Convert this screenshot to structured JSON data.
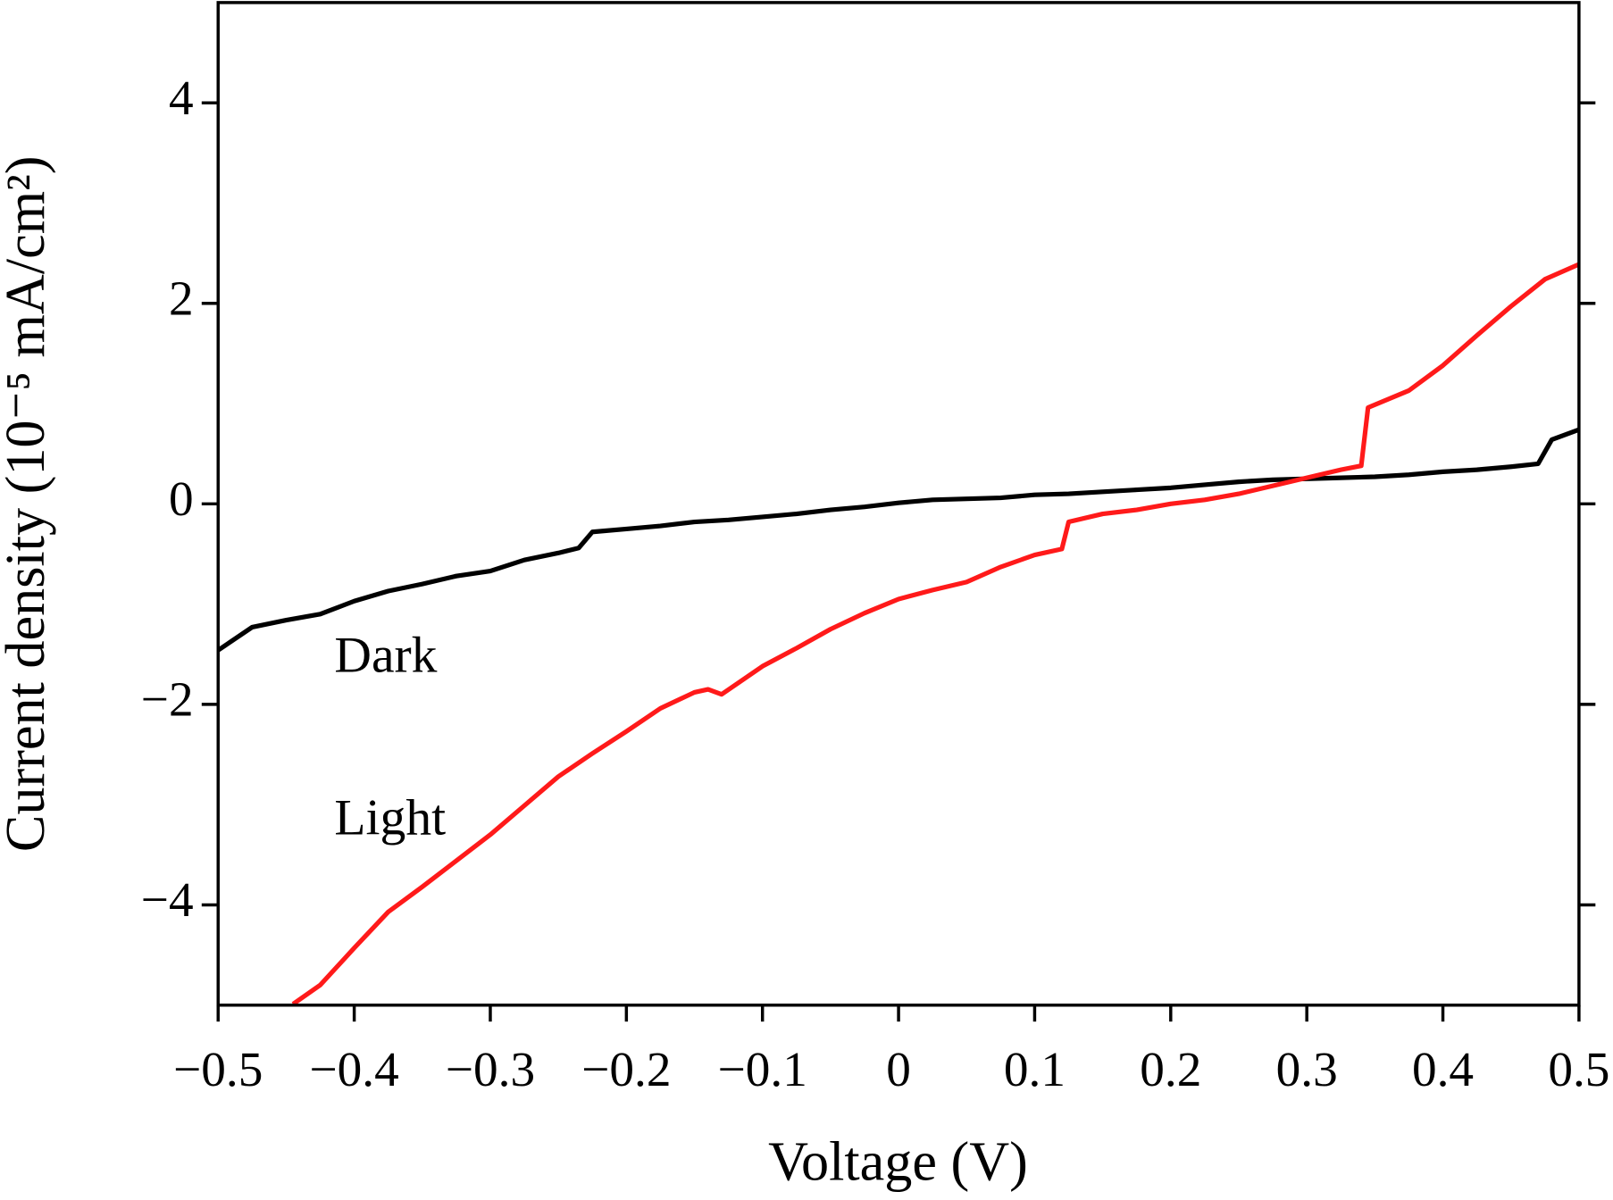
{
  "chart_data": {
    "type": "line",
    "x_label": "Voltage (V)",
    "y_label": "Current density (10⁻⁵ mA/cm²)",
    "xlim": [
      -0.5,
      0.5
    ],
    "ylim": [
      -5,
      5
    ],
    "xticks": [
      {
        "value": -0.5,
        "label": "−0.5"
      },
      {
        "value": -0.4,
        "label": "−0.4"
      },
      {
        "value": -0.3,
        "label": "−0.3"
      },
      {
        "value": -0.2,
        "label": "−0.2"
      },
      {
        "value": -0.1,
        "label": "−0.1"
      },
      0,
      0.1,
      0.2,
      0.3,
      0.4,
      0.5
    ],
    "yticks": [
      {
        "value": -4,
        "label": "−4"
      },
      {
        "value": -2,
        "label": "−2"
      },
      0,
      2,
      4
    ],
    "series": [
      {
        "name": "Dark",
        "color": "#000000",
        "x": [
          -0.5,
          -0.475,
          -0.45,
          -0.425,
          -0.4,
          -0.375,
          -0.35,
          -0.325,
          -0.3,
          -0.275,
          -0.25,
          -0.235,
          -0.225,
          -0.2,
          -0.175,
          -0.15,
          -0.125,
          -0.1,
          -0.075,
          -0.05,
          -0.025,
          0,
          0.025,
          0.05,
          0.075,
          0.1,
          0.125,
          0.15,
          0.175,
          0.2,
          0.225,
          0.25,
          0.275,
          0.3,
          0.325,
          0.35,
          0.375,
          0.4,
          0.425,
          0.45,
          0.47,
          0.48,
          0.5
        ],
        "values": [
          -1.46,
          -1.23,
          -1.16,
          -1.1,
          -0.97,
          -0.87,
          -0.8,
          -0.72,
          -0.67,
          -0.56,
          -0.49,
          -0.44,
          -0.28,
          -0.25,
          -0.22,
          -0.18,
          -0.16,
          -0.13,
          -0.1,
          -0.06,
          -0.03,
          0.01,
          0.04,
          0.05,
          0.06,
          0.09,
          0.1,
          0.12,
          0.14,
          0.16,
          0.19,
          0.22,
          0.24,
          0.25,
          0.26,
          0.27,
          0.29,
          0.32,
          0.34,
          0.37,
          0.4,
          0.64,
          0.74
        ]
      },
      {
        "name": "Light",
        "color": "#ff1a1a",
        "x": [
          -0.445,
          -0.425,
          -0.4,
          -0.375,
          -0.35,
          -0.325,
          -0.3,
          -0.275,
          -0.25,
          -0.225,
          -0.2,
          -0.175,
          -0.15,
          -0.14,
          -0.13,
          -0.1,
          -0.075,
          -0.05,
          -0.025,
          0,
          0.025,
          0.05,
          0.075,
          0.1,
          0.12,
          0.125,
          0.15,
          0.175,
          0.2,
          0.225,
          0.25,
          0.275,
          0.3,
          0.325,
          0.34,
          0.345,
          0.375,
          0.4,
          0.425,
          0.45,
          0.475,
          0.5
        ],
        "values": [
          -4.99,
          -4.8,
          -4.43,
          -4.07,
          -3.82,
          -3.56,
          -3.3,
          -3.01,
          -2.72,
          -2.49,
          -2.27,
          -2.04,
          -1.88,
          -1.85,
          -1.9,
          -1.62,
          -1.44,
          -1.25,
          -1.09,
          -0.95,
          -0.86,
          -0.78,
          -0.63,
          -0.51,
          -0.45,
          -0.18,
          -0.1,
          -0.06,
          0.0,
          0.04,
          0.1,
          0.18,
          0.26,
          0.34,
          0.38,
          0.96,
          1.13,
          1.38,
          1.68,
          1.97,
          2.24,
          2.39
        ]
      }
    ]
  }
}
